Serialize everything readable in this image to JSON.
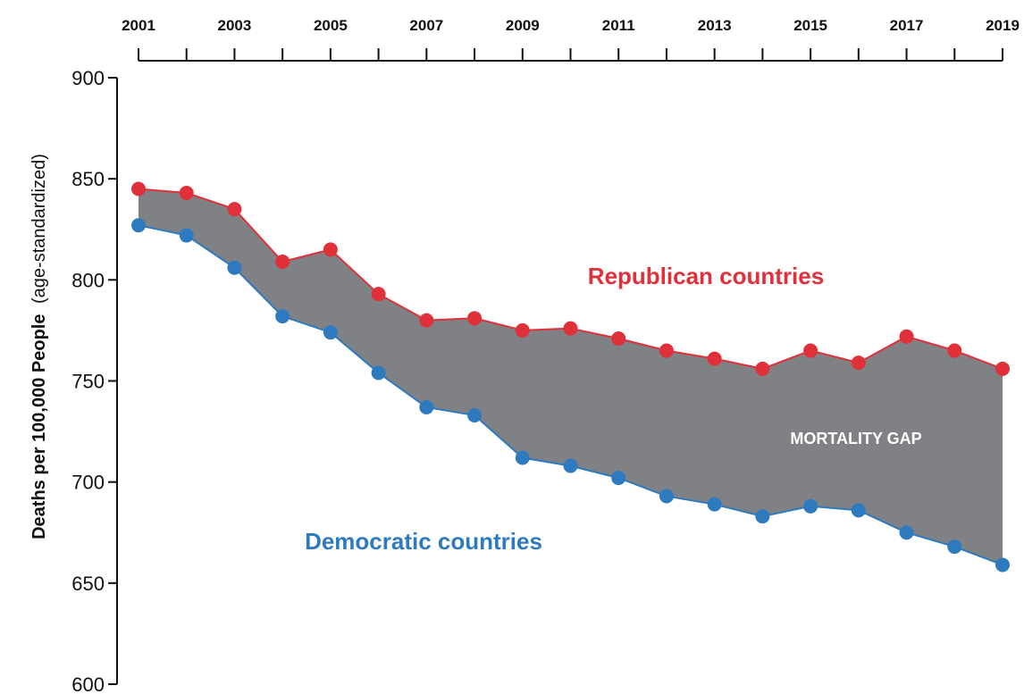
{
  "chart_data": {
    "type": "line",
    "title": "",
    "ylabel_bold": "Deaths per 100,000 People",
    "ylabel_normal": "(age-standardized)",
    "xlabel": "",
    "ylim": [
      600,
      900
    ],
    "yticks": [
      600,
      650,
      700,
      750,
      800,
      850,
      900
    ],
    "x": [
      2001,
      2002,
      2003,
      2004,
      2005,
      2006,
      2007,
      2008,
      2009,
      2010,
      2011,
      2012,
      2013,
      2014,
      2015,
      2016,
      2017,
      2018,
      2019
    ],
    "xtick_labels": [
      "2001",
      "2003",
      "2005",
      "2007",
      "2009",
      "2011",
      "2013",
      "2015",
      "2017",
      "2019"
    ],
    "x_axis_position": "top",
    "grid": false,
    "series": [
      {
        "name": "Republican countries",
        "color": "#e0303a",
        "values": [
          845,
          843,
          835,
          809,
          815,
          793,
          780,
          781,
          775,
          776,
          771,
          765,
          761,
          756,
          765,
          759,
          772,
          765,
          756
        ]
      },
      {
        "name": "Democratic countries",
        "color": "#2e7abf",
        "values": [
          827,
          822,
          806,
          782,
          774,
          754,
          737,
          733,
          712,
          708,
          702,
          693,
          689,
          683,
          688,
          686,
          675,
          668,
          659
        ]
      }
    ],
    "fill_between": {
      "label": "MORTALITY GAP",
      "color": "#808184"
    }
  }
}
